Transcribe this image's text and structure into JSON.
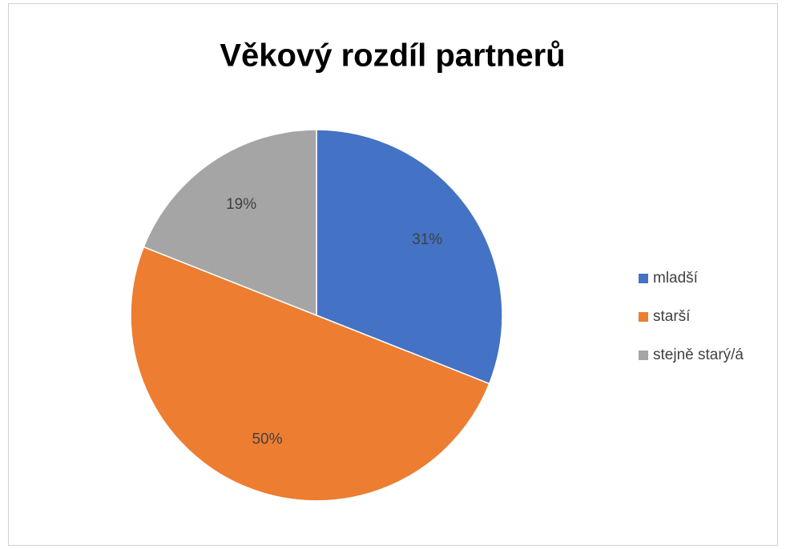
{
  "chart_data": {
    "type": "pie",
    "title": "Věkový rozdíl partnerů",
    "categories": [
      "mladší",
      "starší",
      "stejně starý/á"
    ],
    "values": [
      31,
      50,
      19
    ],
    "value_labels": [
      "31%",
      "50%",
      "19%"
    ],
    "colors": [
      "#4472c4",
      "#ed7d31",
      "#a5a5a5"
    ],
    "legend": "right"
  }
}
